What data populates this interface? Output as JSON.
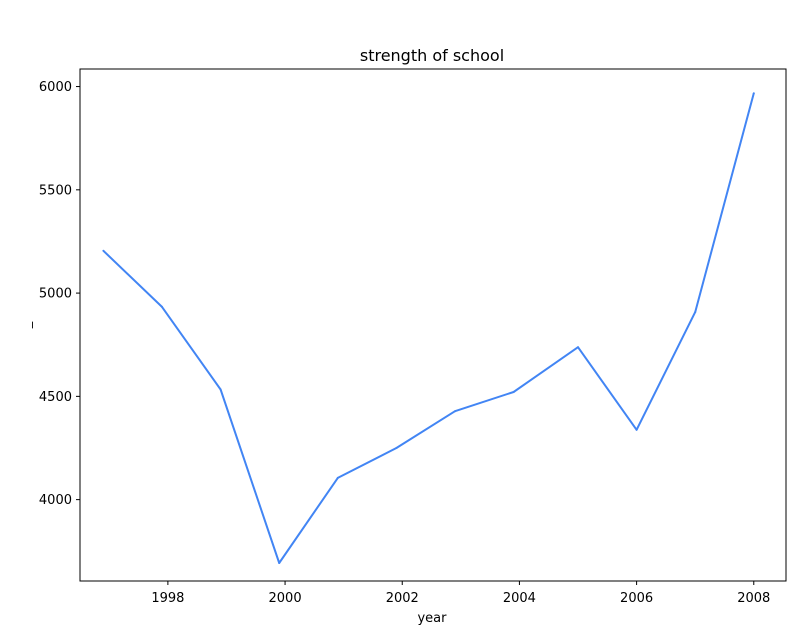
{
  "chart_data": {
    "type": "line",
    "title": "strength of school",
    "xlabel": "year",
    "ylabel": "_",
    "x": [
      1996.9,
      1997.9,
      1998.9,
      1999.9,
      2000.9,
      2001.9,
      2002.9,
      2003.9,
      2005.0,
      2006.0,
      2007.0,
      2008.0
    ],
    "series": [
      {
        "values": [
          5205,
          4933,
          4533,
          3693,
          4105,
          4250,
          4428,
          4521,
          4738,
          4338,
          4908,
          5968
        ]
      }
    ],
    "xlim": [
      1996.5,
      2008.55
    ],
    "ylim": [
      3606,
      6085
    ],
    "xticks": [
      1998,
      2000,
      2002,
      2004,
      2006,
      2008
    ],
    "yticks": [
      4000,
      4500,
      5000,
      5500,
      6000
    ],
    "xtick_labels": [
      "1998",
      "2000",
      "2002",
      "2004",
      "2006",
      "2008"
    ],
    "ytick_labels": [
      "4000",
      "4500",
      "5000",
      "5500",
      "6000"
    ],
    "line_color": "#4285f4",
    "grid": false,
    "legend": "none"
  }
}
